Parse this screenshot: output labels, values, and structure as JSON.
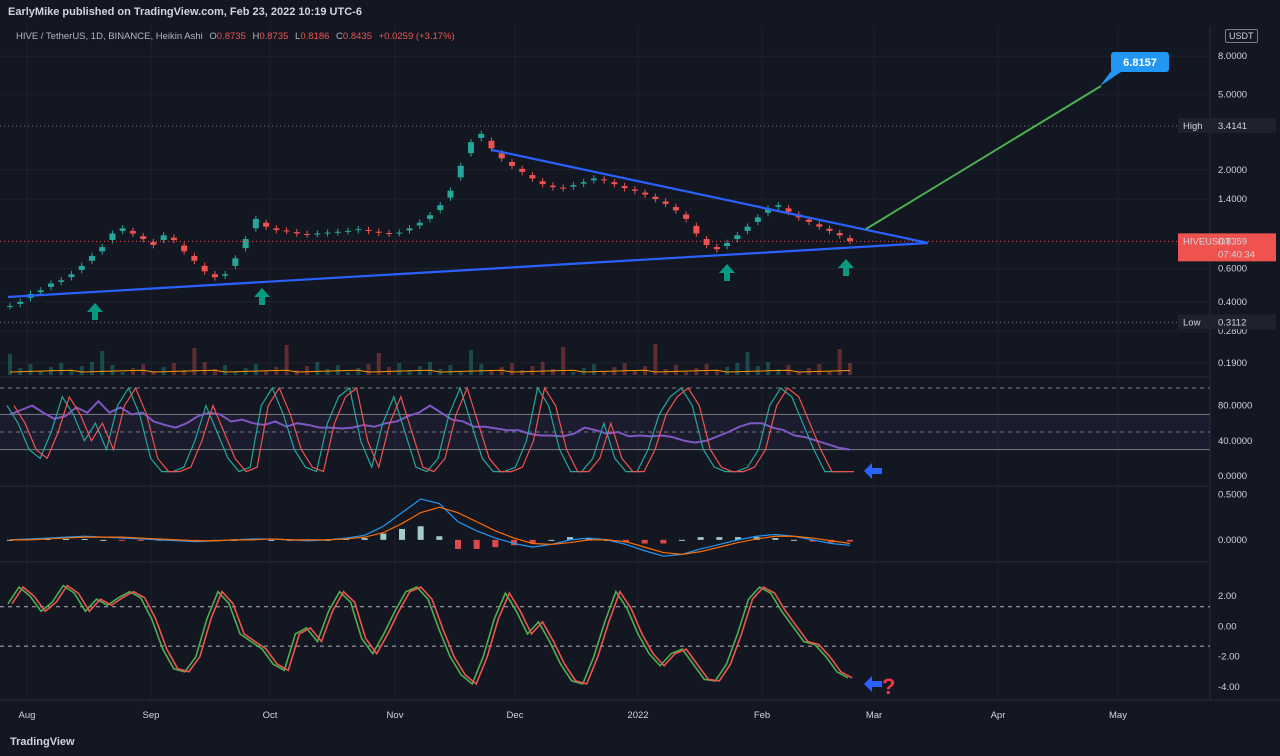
{
  "header": {
    "published": "EarlyMike published on TradingView.com, Feb 23, 2022 10:19 UTC-6"
  },
  "legend": {
    "symbol": "HIVE / TetherUS, 1D, BINANCE, Heikin Ashi",
    "o_label": "O",
    "o_value": "0.8735",
    "h_label": "H",
    "h_value": "0.8735",
    "l_label": "L",
    "l_value": "0.8186",
    "c_label": "C",
    "c_value": "0.8435",
    "change": "+0.0259 (+3.17%)"
  },
  "currency_tag": "USDT",
  "footer": {
    "brand": "TradingView"
  },
  "colors": {
    "bg": "#131722",
    "up": "#26a69a",
    "down": "#ef5350",
    "trendline": "#2962ff",
    "target": "#4caf50",
    "arrow_up": "#089981",
    "arrow_left": "#2962ff",
    "question": "#f23645"
  },
  "icons": [
    "arrow-up-icon",
    "arrow-left-icon",
    "question-mark-icon",
    "tradingview-logo-icon"
  ],
  "chart_data": [
    {
      "type": "candlestick",
      "pane": "price",
      "scale": "log",
      "x_ticks": [
        "Aug",
        "Sep",
        "Oct",
        "Nov",
        "Dec",
        "2022",
        "Feb",
        "Mar",
        "Apr",
        "May"
      ],
      "y_ticks": [
        "8.0000",
        "5.0000",
        "2.0000",
        "1.4000",
        "0.6000",
        "0.4000",
        "0.2800",
        "0.1900"
      ],
      "ylim": [
        0.17,
        11
      ],
      "price_tags": [
        {
          "label": "High",
          "value": "3.4141"
        },
        {
          "label": "HIVEUSDT",
          "value": "0.8359",
          "extra": "07:40:34"
        },
        {
          "label": "Low",
          "value": "0.3112"
        }
      ],
      "target_label": "6.8157",
      "path": [
        0.38,
        0.4,
        0.44,
        0.46,
        0.5,
        0.52,
        0.56,
        0.62,
        0.7,
        0.78,
        0.92,
        0.98,
        0.92,
        0.86,
        0.8,
        0.9,
        0.85,
        0.74,
        0.66,
        0.58,
        0.54,
        0.56,
        0.68,
        0.86,
        1.1,
        1.0,
        0.96,
        0.95,
        0.92,
        0.91,
        0.92,
        0.93,
        0.94,
        0.95,
        0.97,
        0.95,
        0.93,
        0.92,
        0.93,
        0.98,
        1.05,
        1.15,
        1.3,
        1.55,
        2.1,
        2.8,
        3.1,
        2.6,
        2.3,
        2.1,
        1.95,
        1.8,
        1.68,
        1.62,
        1.6,
        1.66,
        1.72,
        1.8,
        1.76,
        1.68,
        1.6,
        1.55,
        1.48,
        1.4,
        1.32,
        1.22,
        1.1,
        0.92,
        0.8,
        0.76,
        0.82,
        0.9,
        1.0,
        1.12,
        1.25,
        1.3,
        1.2,
        1.12,
        1.06,
        1.0,
        0.95,
        0.9,
        0.84
      ]
    },
    {
      "type": "line",
      "pane": "stoch-rsi",
      "y_ticks": [
        "80.0000",
        "40.0000",
        "0.0000"
      ],
      "ylim": [
        0,
        100
      ],
      "series": [
        {
          "values": [
            70,
            75,
            80,
            72,
            65,
            68,
            78,
            72,
            85,
            72,
            78,
            70,
            72,
            62,
            58,
            55,
            60,
            68,
            72,
            70,
            62,
            64,
            60,
            58,
            62,
            56,
            60,
            58,
            55,
            55,
            54,
            55,
            58,
            56,
            60,
            62,
            68,
            72,
            80,
            72,
            64,
            62,
            56,
            56,
            54,
            52,
            52,
            48,
            46,
            46,
            45,
            48,
            55,
            52,
            48,
            50,
            45,
            46,
            45,
            46,
            44,
            40,
            38,
            40,
            45,
            50,
            56,
            60,
            60,
            55,
            52,
            46,
            44,
            40,
            36,
            32,
            30
          ]
        },
        {
          "values": [
            80,
            60,
            30,
            20,
            50,
            90,
            70,
            40,
            60,
            30,
            80,
            100,
            70,
            20,
            5,
            5,
            10,
            40,
            80,
            50,
            20,
            5,
            10,
            80,
            100,
            70,
            30,
            10,
            5,
            60,
            90,
            100,
            40,
            10,
            60,
            90,
            50,
            10,
            5,
            20,
            70,
            100,
            60,
            20,
            5,
            5,
            10,
            40,
            100,
            80,
            30,
            5,
            5,
            20,
            60,
            20,
            5,
            5,
            30,
            70,
            90,
            100,
            80,
            30,
            10,
            5,
            5,
            10,
            30,
            80,
            100,
            90,
            60,
            30,
            5,
            5,
            5
          ]
        }
      ]
    },
    {
      "type": "line",
      "pane": "macd",
      "y_ticks": [
        "0.5000",
        "0.0000"
      ],
      "ylim": [
        -0.2,
        0.55
      ],
      "series": [
        {
          "values": [
            0.0,
            0.01,
            0.02,
            0.03,
            0.04,
            0.03,
            0.02,
            0.01,
            0.0,
            -0.01,
            -0.02,
            -0.01,
            0.0,
            0.01,
            0.01,
            0.0,
            -0.01,
            0.0,
            0.02,
            0.05,
            0.15,
            0.3,
            0.45,
            0.4,
            0.2,
            0.1,
            0.02,
            -0.04,
            -0.08,
            -0.05,
            0.0,
            0.02,
            0.0,
            -0.05,
            -0.12,
            -0.18,
            -0.16,
            -0.1,
            -0.05,
            0.0,
            0.04,
            0.06,
            0.04,
            0.0,
            -0.04,
            -0.06
          ]
        },
        {
          "values": [
            0.0,
            0.0,
            0.01,
            0.02,
            0.03,
            0.03,
            0.03,
            0.02,
            0.01,
            0.0,
            -0.01,
            -0.01,
            0.0,
            0.0,
            0.01,
            0.0,
            0.0,
            0.0,
            0.01,
            0.03,
            0.08,
            0.18,
            0.3,
            0.36,
            0.3,
            0.2,
            0.1,
            0.02,
            -0.04,
            -0.05,
            -0.03,
            0.0,
            0.0,
            -0.02,
            -0.08,
            -0.14,
            -0.16,
            -0.13,
            -0.08,
            -0.03,
            0.01,
            0.04,
            0.04,
            0.02,
            -0.01,
            -0.04
          ]
        }
      ],
      "histogram": [
        0.0,
        0.01,
        0.01,
        0.01,
        0.01,
        0.0,
        -0.01,
        -0.01,
        -0.01,
        -0.01,
        -0.01,
        0.0,
        0.0,
        0.01,
        0.0,
        0.0,
        -0.01,
        0.0,
        0.01,
        0.02,
        0.07,
        0.12,
        0.15,
        0.04,
        -0.1,
        -0.1,
        -0.08,
        -0.06,
        -0.04,
        0.0,
        0.03,
        0.02,
        0.0,
        -0.03,
        -0.04,
        -0.04,
        0.0,
        0.03,
        0.03,
        0.03,
        0.03,
        0.02,
        0.0,
        -0.02,
        -0.03,
        -0.02
      ]
    },
    {
      "type": "line",
      "pane": "oscillator",
      "y_ticks": [
        "2.00",
        "0.00",
        "-2.00",
        "-4.00"
      ],
      "ylim": [
        -4.6,
        3.2
      ],
      "levels": [
        1.3,
        -1.3
      ],
      "series": [
        {
          "values": [
            1.5,
            2.6,
            2.0,
            1.0,
            1.6,
            2.7,
            2.2,
            1.0,
            1.8,
            1.4,
            1.9,
            2.3,
            1.9,
            0.5,
            -1.5,
            -2.8,
            -3.0,
            -2.0,
            0.5,
            2.3,
            1.5,
            -0.5,
            -1.0,
            -1.5,
            -2.5,
            -2.9,
            -0.5,
            -0.1,
            -1.0,
            1.0,
            2.3,
            1.6,
            -0.8,
            -1.8,
            -0.5,
            1.0,
            2.3,
            2.6,
            1.8,
            -0.2,
            -2.0,
            -3.2,
            -3.8,
            -2.0,
            0.5,
            2.2,
            1.0,
            -0.5,
            0.3,
            -1.0,
            -2.5,
            -3.6,
            -3.8,
            -2.0,
            0.3,
            2.3,
            1.2,
            -0.5,
            -1.8,
            -2.6,
            -1.8,
            -1.5,
            -2.5,
            -3.5,
            -3.6,
            -2.5,
            -0.5,
            1.8,
            2.6,
            2.2,
            1.0,
            0.0,
            -1.0,
            -1.2,
            -2.0,
            -3.0,
            -3.4
          ]
        }
      ]
    }
  ]
}
